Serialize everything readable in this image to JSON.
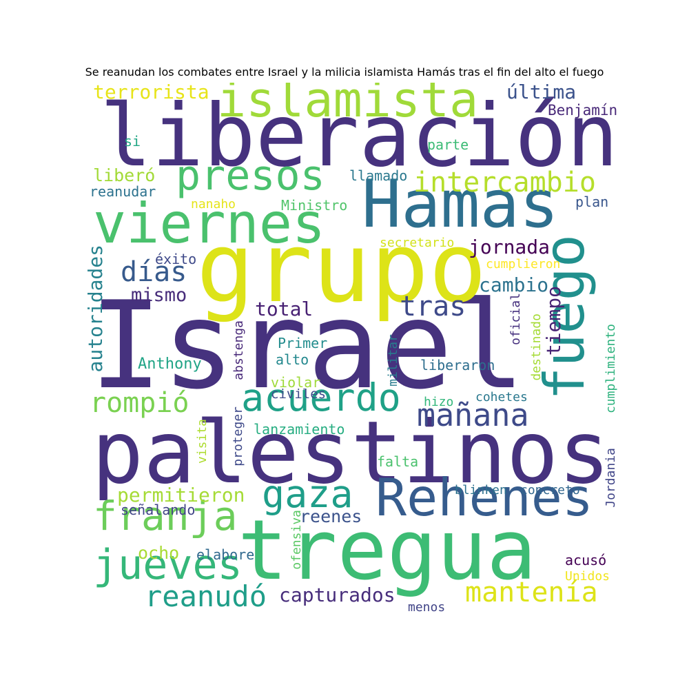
{
  "title": "Se reanudan los combates entre Israel y la milicia islamista Hamás tras el fin del alto el fuego",
  "words": [
    {
      "text": "Israel",
      "color": "#46327e"
    },
    {
      "text": "palestinos",
      "color": "#46327e"
    },
    {
      "text": "liberación",
      "color": "#46327e"
    },
    {
      "text": "grupo",
      "color": "#dde318"
    },
    {
      "text": "tregua",
      "color": "#3dbc74"
    },
    {
      "text": "Hamas",
      "color": "#2e6f8e"
    },
    {
      "text": "viernes",
      "color": "#4ac16d"
    },
    {
      "text": "fuego",
      "color": "#21908d"
    },
    {
      "text": "islamista",
      "color": "#a0da39"
    },
    {
      "text": "Rehenes",
      "color": "#365c8d"
    },
    {
      "text": "jueves",
      "color": "#35b779"
    },
    {
      "text": "acuerdo",
      "color": "#1fa187"
    },
    {
      "text": "presos",
      "color": "#4ac16d"
    },
    {
      "text": "franja",
      "color": "#6ccd5a"
    },
    {
      "text": "gaza",
      "color": "#1f9e89"
    },
    {
      "text": "mañana",
      "color": "#3e4a89"
    },
    {
      "text": "intercambio",
      "color": "#b5de2b"
    },
    {
      "text": "rompió",
      "color": "#7ad151"
    },
    {
      "text": "mantenía",
      "color": "#dde318"
    },
    {
      "text": "reanudó",
      "color": "#1f9e89"
    },
    {
      "text": "tras",
      "color": "#3e4a89"
    },
    {
      "text": "días",
      "color": "#375a8c"
    },
    {
      "text": "terrorista",
      "color": "#e7e419"
    },
    {
      "text": "última",
      "color": "#3b528b"
    },
    {
      "text": "autoridades",
      "color": "#26828e"
    },
    {
      "text": "capturados",
      "color": "#472d7b"
    },
    {
      "text": "permitieron",
      "color": "#a5db36"
    },
    {
      "text": "jornada",
      "color": "#440154"
    },
    {
      "text": "cambio",
      "color": "#2c728e"
    },
    {
      "text": "total",
      "color": "#482173"
    },
    {
      "text": "tiempo",
      "color": "#482475"
    },
    {
      "text": "mismo",
      "color": "#472c7a"
    },
    {
      "text": "reenes",
      "color": "#3b528b"
    },
    {
      "text": "ocho",
      "color": "#a8db34"
    },
    {
      "text": "Benjamín",
      "color": "#482878"
    },
    {
      "text": "liberó",
      "color": "#a2da37"
    },
    {
      "text": "señalando",
      "color": "#414487"
    },
    {
      "text": "Anthony",
      "color": "#20a486"
    },
    {
      "text": "elabore",
      "color": "#30698e"
    },
    {
      "text": "acusó",
      "color": "#440154"
    },
    {
      "text": "reanudar",
      "color": "#2c728e"
    },
    {
      "text": "llamado",
      "color": "#2a788e"
    },
    {
      "text": "si",
      "color": "#22a785"
    },
    {
      "text": "parte",
      "color": "#3bbb75"
    },
    {
      "text": "plan",
      "color": "#39568c"
    },
    {
      "text": "nanaho",
      "color": "#e5e419"
    },
    {
      "text": "Ministro",
      "color": "#50c46a"
    },
    {
      "text": "secretario",
      "color": "#d2e21b"
    },
    {
      "text": "éxito",
      "color": "#3e4989"
    },
    {
      "text": "cumplieron",
      "color": "#fde725"
    },
    {
      "text": "oficial",
      "color": "#46307e"
    },
    {
      "text": "destinado",
      "color": "#a5db36"
    },
    {
      "text": "Primer",
      "color": "#228c8d"
    },
    {
      "text": "alto",
      "color": "#23888e"
    },
    {
      "text": "cumplimiento",
      "color": "#2db27d"
    },
    {
      "text": "abstenga",
      "color": "#482979"
    },
    {
      "text": "militar",
      "color": "#287c8e"
    },
    {
      "text": "liberaron",
      "color": "#2e6e8e"
    },
    {
      "text": "violar",
      "color": "#9fda3a"
    },
    {
      "text": "civiles",
      "color": "#3e4c8a"
    },
    {
      "text": "hizo",
      "color": "#32b67a"
    },
    {
      "text": "cohetes",
      "color": "#2a788e"
    },
    {
      "text": "cumplimiento",
      "color": "#6ece58"
    },
    {
      "text": "visita",
      "color": "#addc30"
    },
    {
      "text": "proteger",
      "color": "#3e4989"
    },
    {
      "text": "lanzamiento",
      "color": "#26ad81"
    },
    {
      "text": "falta",
      "color": "#4ac16d"
    },
    {
      "text": "Jordania",
      "color": "#404588"
    },
    {
      "text": "blinken",
      "color": "#2d718e"
    },
    {
      "text": "concreto",
      "color": "#31668e"
    },
    {
      "text": "ofensiva",
      "color": "#5ac864"
    },
    {
      "text": "Unidos",
      "color": "#f1e51d"
    },
    {
      "text": "menos",
      "color": "#414487"
    }
  ]
}
